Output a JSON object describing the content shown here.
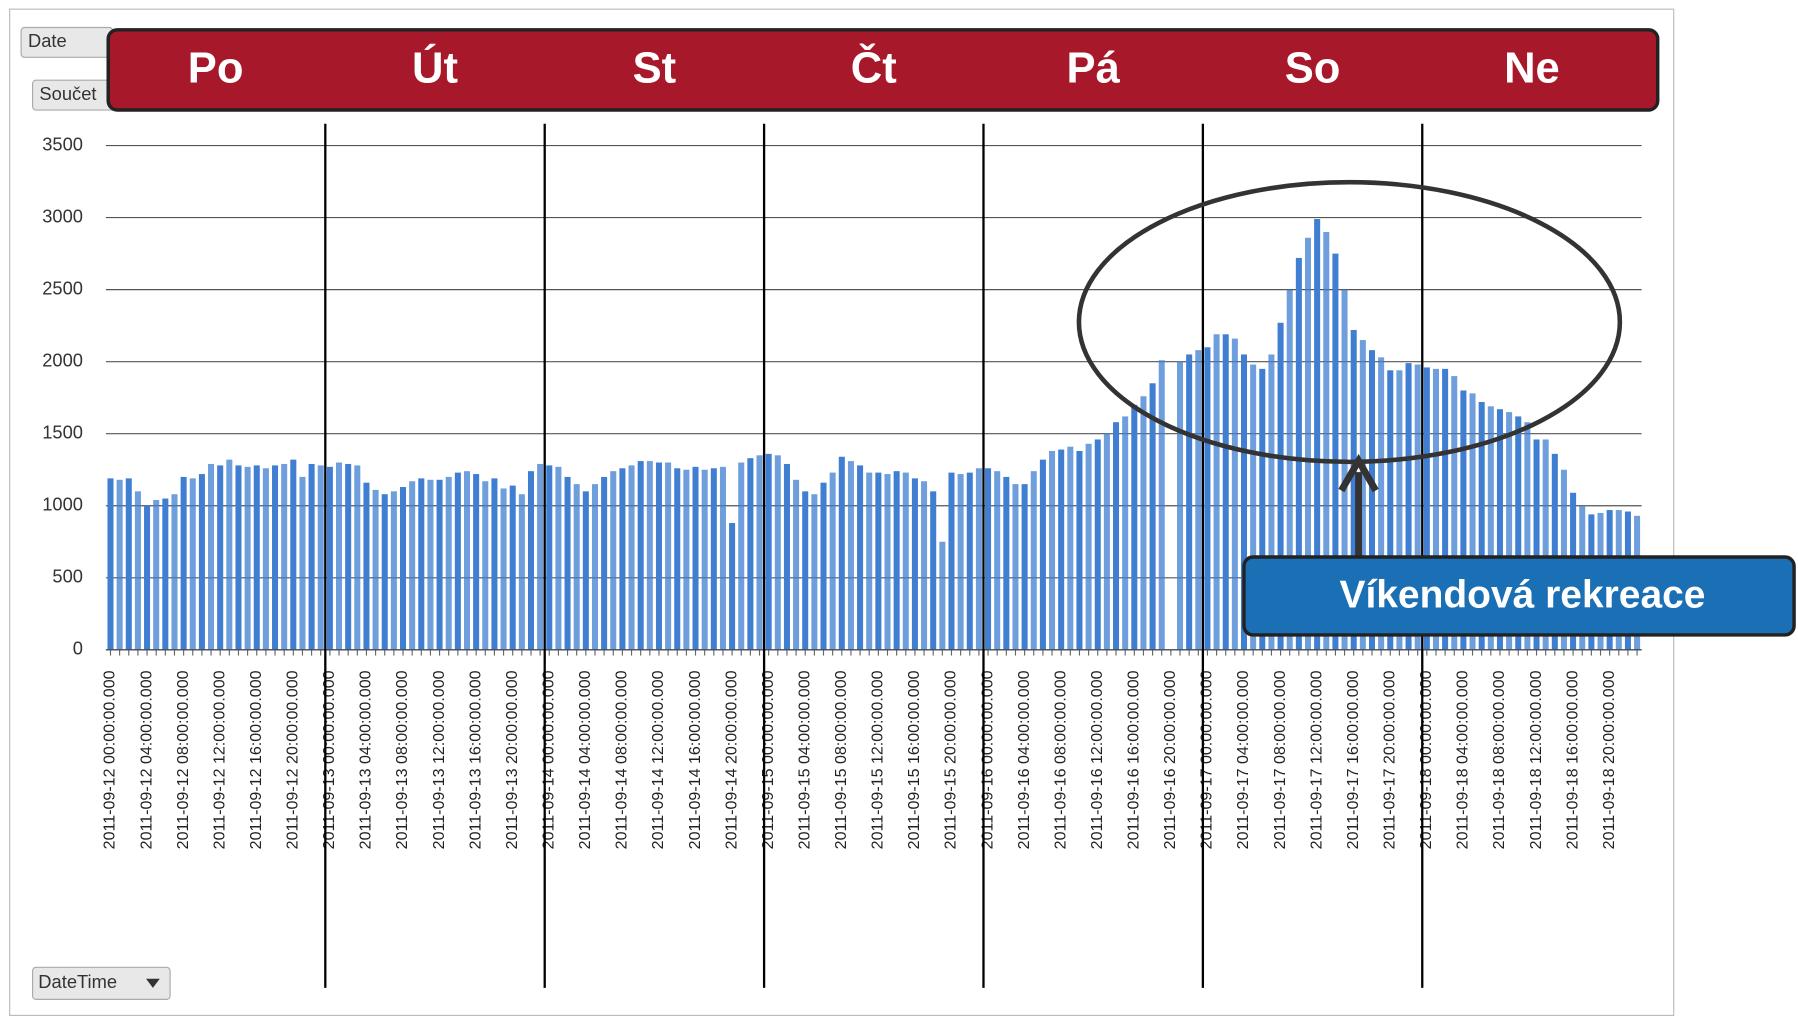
{
  "chart_data": {
    "type": "bar",
    "buttons": [
      "Date",
      "Součet",
      "DateTime"
    ],
    "day_labels": [
      "Po",
      "Út",
      "St",
      "Čt",
      "Pá",
      "So",
      "Ne"
    ],
    "annotation": "Víkendová rekreace",
    "color": "#3f7ed0",
    "grid": true,
    "ylim": [
      0,
      3500
    ],
    "yticks": [
      0,
      500,
      1000,
      1500,
      2000,
      2500,
      3000,
      3500
    ],
    "categories": [
      "2011-09-12 00:00:00.000",
      null,
      null,
      null,
      "2011-09-12 04:00:00.000",
      null,
      null,
      null,
      "2011-09-12 08:00:00.000",
      null,
      null,
      null,
      "2011-09-12 12:00:00.000",
      null,
      null,
      null,
      "2011-09-12 16:00:00.000",
      null,
      null,
      null,
      "2011-09-12 20:00:00.000",
      null,
      null,
      null,
      "2011-09-13 00:00:00.000",
      null,
      null,
      null,
      "2011-09-13 04:00:00.000",
      null,
      null,
      null,
      "2011-09-13 08:00:00.000",
      null,
      null,
      null,
      "2011-09-13 12:00:00.000",
      null,
      null,
      null,
      "2011-09-13 16:00:00.000",
      null,
      null,
      null,
      "2011-09-13 20:00:00.000",
      null,
      null,
      null,
      "2011-09-14 00:00:00.000",
      null,
      null,
      null,
      "2011-09-14 04:00:00.000",
      null,
      null,
      null,
      "2011-09-14 08:00:00.000",
      null,
      null,
      null,
      "2011-09-14 12:00:00.000",
      null,
      null,
      null,
      "2011-09-14 16:00:00.000",
      null,
      null,
      null,
      "2011-09-14 20:00:00.000",
      null,
      null,
      null,
      "2011-09-15 00:00:00.000",
      null,
      null,
      null,
      "2011-09-15 04:00:00.000",
      null,
      null,
      null,
      "2011-09-15 08:00:00.000",
      null,
      null,
      null,
      "2011-09-15 12:00:00.000",
      null,
      null,
      null,
      "2011-09-15 16:00:00.000",
      null,
      null,
      null,
      "2011-09-15 20:00:00.000",
      null,
      null,
      null,
      "2011-09-16 00:00:00.000",
      null,
      null,
      null,
      "2011-09-16 04:00:00.000",
      null,
      null,
      null,
      "2011-09-16 08:00:00.000",
      null,
      null,
      null,
      "2011-09-16 12:00:00.000",
      null,
      null,
      null,
      "2011-09-16 16:00:00.000",
      null,
      null,
      null,
      "2011-09-16 20:00:00.000",
      null,
      null,
      null,
      "2011-09-17 00:00:00.000",
      null,
      null,
      null,
      "2011-09-17 04:00:00.000",
      null,
      null,
      null,
      "2011-09-17 08:00:00.000",
      null,
      null,
      null,
      "2011-09-17 12:00:00.000",
      null,
      null,
      null,
      "2011-09-17 16:00:00.000",
      null,
      null,
      null,
      "2011-09-17 20:00:00.000",
      null,
      null,
      null,
      "2011-09-18 00:00:00.000",
      null,
      null,
      null,
      "2011-09-18 04:00:00.000",
      null,
      null,
      null,
      "2011-09-18 08:00:00.000",
      null,
      null,
      null,
      "2011-09-18 12:00:00.000",
      null,
      null,
      null,
      "2011-09-18 16:00:00.000",
      null,
      null,
      null,
      "2011-09-18 20:00:00.000",
      null,
      null,
      null
    ],
    "values": [
      1190,
      1180,
      1190,
      1100,
      1000,
      1040,
      1050,
      1080,
      1200,
      1190,
      1220,
      1290,
      1280,
      1320,
      1280,
      1270,
      1280,
      1260,
      1280,
      1290,
      1320,
      1200,
      1290,
      1280,
      1270,
      1300,
      1290,
      1280,
      1160,
      1110,
      1080,
      1100,
      1130,
      1170,
      1190,
      1180,
      1180,
      1200,
      1230,
      1240,
      1220,
      1170,
      1190,
      1120,
      1140,
      1080,
      1240,
      1290,
      1280,
      1270,
      1200,
      1150,
      1100,
      1150,
      1200,
      1240,
      1260,
      1280,
      1310,
      1310,
      1300,
      1300,
      1260,
      1250,
      1270,
      1250,
      1260,
      1270,
      880,
      1300,
      1330,
      1350,
      1360,
      1350,
      1290,
      1180,
      1100,
      1080,
      1160,
      1230,
      1340,
      1310,
      1280,
      1230,
      1230,
      1220,
      1240,
      1230,
      1190,
      1170,
      1100,
      750,
      1230,
      1220,
      1230,
      1260,
      1260,
      1240,
      1200,
      1150,
      1150,
      1240,
      1320,
      1380,
      1390,
      1410,
      1380,
      1430,
      1460,
      1500,
      1580,
      1620,
      1700,
      1760,
      1850,
      2010,
      0,
      2000,
      2050,
      2080,
      2100,
      2190,
      2190,
      2160,
      2050,
      1980,
      1950,
      2050,
      2270,
      2500,
      2720,
      2860,
      2990,
      2900,
      2750,
      2500,
      2220,
      2150,
      2080,
      2030,
      1940,
      1940,
      1990,
      1980,
      1960,
      1950,
      1950,
      1900,
      1800,
      1780,
      1720,
      1690,
      1670,
      1650,
      1620,
      1580,
      1460,
      1460,
      1360,
      1250,
      1090,
      1000,
      940,
      950,
      970,
      970,
      960,
      930
    ]
  }
}
